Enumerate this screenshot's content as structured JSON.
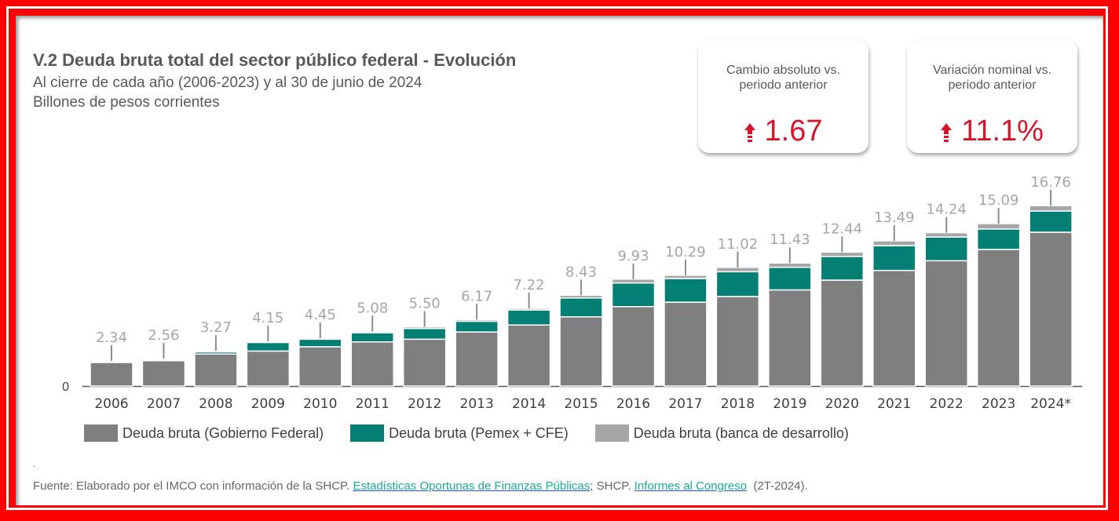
{
  "title": "V.2 Deuda bruta total del sector público federal - Evolución",
  "subtitle1": "Al cierre de cada año (2006-2023) y al 30 de junio de 2024",
  "subtitle2": "Billones de pesos corrientes",
  "cards": [
    {
      "label1": "Cambio absoluto vs.",
      "label2": "periodo anterior",
      "value": "1.67",
      "icon": "arrow-up-icon"
    },
    {
      "label1": "Variación nominal vs.",
      "label2": "periodo anterior",
      "value": "11.1%",
      "icon": "arrow-up-icon"
    }
  ],
  "colors": {
    "gobierno": "#7f7f7f",
    "pemex": "#047f73",
    "banca": "#a6a6a6",
    "accent": "#d7142a"
  },
  "chart_data": {
    "type": "bar",
    "stacked": true,
    "categories": [
      "2006",
      "2007",
      "2008",
      "2009",
      "2010",
      "2011",
      "2012",
      "2013",
      "2014",
      "2015",
      "2016",
      "2017",
      "2018",
      "2019",
      "2020",
      "2021",
      "2022",
      "2023",
      "2024*"
    ],
    "series": [
      {
        "name": "Deuda bruta (Gobierno Federal)",
        "color": "#7f7f7f",
        "values": [
          2.2,
          2.36,
          2.97,
          3.25,
          3.65,
          4.1,
          4.35,
          5.02,
          5.67,
          6.43,
          7.38,
          7.79,
          8.32,
          8.93,
          9.84,
          10.74,
          11.64,
          12.69,
          14.29
        ]
      },
      {
        "name": "Deuda bruta (Pemex + CFE)",
        "color": "#047f73",
        "values": [
          0.06,
          0.1,
          0.2,
          0.8,
          0.7,
          0.85,
          1.0,
          1.0,
          1.4,
          1.75,
          2.2,
          2.2,
          2.3,
          2.1,
          2.2,
          2.3,
          2.2,
          1.9,
          1.97
        ]
      },
      {
        "name": "Deuda bruta (banca de desarrollo)",
        "color": "#a6a6a6",
        "values": [
          0.08,
          0.1,
          0.1,
          0.1,
          0.1,
          0.13,
          0.15,
          0.15,
          0.15,
          0.25,
          0.35,
          0.3,
          0.4,
          0.4,
          0.4,
          0.45,
          0.4,
          0.5,
          0.5
        ]
      }
    ],
    "totals": [
      "2.34",
      "2.56",
      "3.27",
      "4.15",
      "4.45",
      "5.08",
      "5.50",
      "6.17",
      "7.22",
      "8.43",
      "9.93",
      "10.29",
      "11.02",
      "11.43",
      "12.44",
      "13.49",
      "14.24",
      "15.09",
      "16.76"
    ],
    "ytick": "0",
    "ylim": [
      0,
      17
    ],
    "grid": false,
    "legend": "bottom"
  },
  "footnote_mark": ".",
  "source": {
    "prefix": "Fuente: Elaborado por el IMCO con información de la SHCP. ",
    "link1": "Estadísticas Oportunas de Finanzas Públicas",
    "mid": "; SHCP. ",
    "link2": "Informes al Congreso",
    "suffix": "  (2T-2024)."
  }
}
